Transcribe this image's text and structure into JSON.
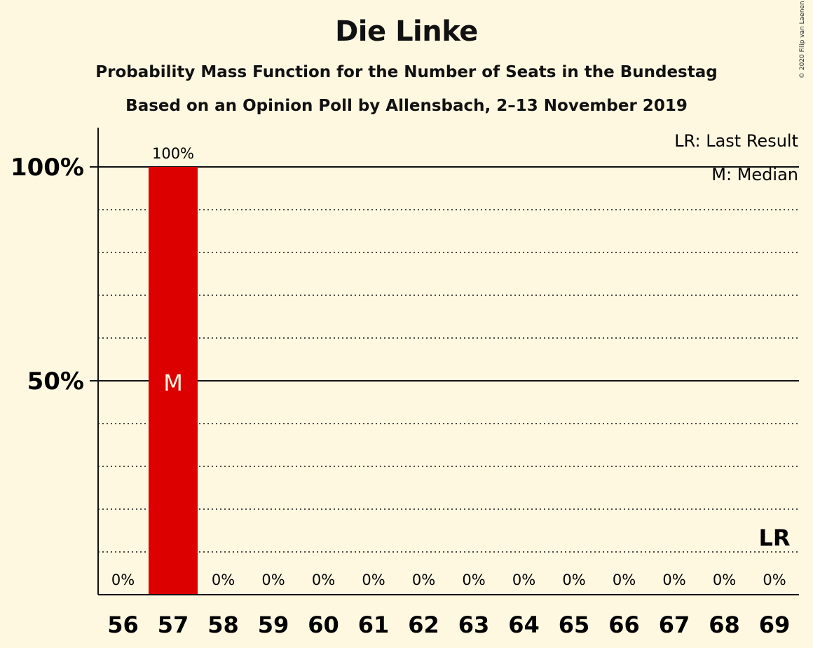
{
  "chart_data": {
    "type": "bar",
    "title": "Die Linke",
    "subtitle_1": "Probability Mass Function for the Number of Seats in the Bundestag",
    "subtitle_2": "Based on an Opinion Poll by Allensbach, 2–13 November 2019",
    "copyright": "© 2020 Filip van Laenen",
    "categories": [
      "56",
      "57",
      "58",
      "59",
      "60",
      "61",
      "62",
      "63",
      "64",
      "65",
      "66",
      "67",
      "68",
      "69"
    ],
    "values": [
      0,
      100,
      0,
      0,
      0,
      0,
      0,
      0,
      0,
      0,
      0,
      0,
      0,
      0
    ],
    "value_labels": [
      "0%",
      "100%",
      "0%",
      "0%",
      "0%",
      "0%",
      "0%",
      "0%",
      "0%",
      "0%",
      "0%",
      "0%",
      "0%",
      "0%"
    ],
    "ylim": [
      0,
      100
    ],
    "y_ticks": [
      {
        "value": 50,
        "label": "50%"
      },
      {
        "value": 100,
        "label": "100%"
      }
    ],
    "minor_grid_step": 10,
    "median_category": "57",
    "median_marker": "M",
    "last_result_category": "69",
    "last_result_marker": "LR",
    "legend": [
      "LR: Last Result",
      "M: Median"
    ],
    "legend_position": "top-right",
    "bar_color": "#dd0000"
  }
}
